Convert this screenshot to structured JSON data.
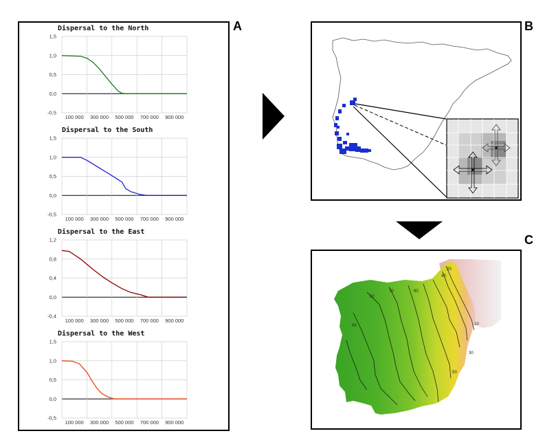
{
  "labels": {
    "a": "A",
    "b": "B",
    "c": "C"
  },
  "chart_data": [
    {
      "type": "line",
      "title": "Dispersal to the North",
      "x_ticks": [
        "100 000",
        "300 000",
        "500 000",
        "700 000",
        "900 000"
      ],
      "y_ticks": [
        "1,5",
        "1,0",
        "0,5",
        "0,0",
        "-0,5"
      ],
      "ylim": [
        -0.5,
        1.5
      ],
      "xlim": [
        0,
        1000000
      ],
      "grid": true,
      "color": "#1e7a1e",
      "series": [
        {
          "x": [
            0,
            150000,
            200000,
            250000,
            300000,
            350000,
            400000,
            450000,
            480000,
            520000,
            600000,
            1000000
          ],
          "y": [
            1.0,
            0.98,
            0.93,
            0.82,
            0.65,
            0.45,
            0.25,
            0.07,
            0.01,
            0.0,
            0.0,
            0.0
          ]
        }
      ]
    },
    {
      "type": "line",
      "title": "Dispersal to the South",
      "x_ticks": [
        "100 000",
        "300 000",
        "500 000",
        "700 000",
        "900 000"
      ],
      "y_ticks": [
        "1,5",
        "1,0",
        "0,5",
        "0,0",
        "-0,5"
      ],
      "ylim": [
        -0.5,
        1.5
      ],
      "xlim": [
        0,
        1000000
      ],
      "grid": true,
      "color": "#2020d0",
      "series": [
        {
          "x": [
            0,
            150000,
            200000,
            300000,
            400000,
            480000,
            510000,
            550000,
            620000,
            680000,
            1000000
          ],
          "y": [
            1.0,
            1.0,
            0.92,
            0.72,
            0.52,
            0.35,
            0.18,
            0.1,
            0.03,
            0.0,
            0.0
          ]
        }
      ]
    },
    {
      "type": "line",
      "title": "Dispersal to the East",
      "x_ticks": [
        "100 000",
        "300 000",
        "500 000",
        "700 000",
        "900 000"
      ],
      "y_ticks": [
        "1,2",
        "0,8",
        "0,4",
        "0,0",
        "-0,4"
      ],
      "ylim": [
        -0.4,
        1.2
      ],
      "xlim": [
        0,
        1000000
      ],
      "grid": true,
      "color": "#8b0000",
      "series": [
        {
          "x": [
            0,
            60000,
            150000,
            250000,
            330000,
            400000,
            480000,
            550000,
            630000,
            690000,
            1000000
          ],
          "y": [
            0.98,
            0.96,
            0.8,
            0.58,
            0.42,
            0.3,
            0.18,
            0.1,
            0.05,
            0.0,
            0.0
          ]
        }
      ]
    },
    {
      "type": "line",
      "title": "Dispersal to the West",
      "x_ticks": [
        "100 000",
        "300 000",
        "500 000",
        "700 000",
        "900 000"
      ],
      "y_ticks": [
        "1,5",
        "1,0",
        "0,5",
        "0,0",
        "-0,5"
      ],
      "ylim": [
        -0.5,
        1.5
      ],
      "xlim": [
        0,
        1000000
      ],
      "grid": true,
      "color": "#ee4411",
      "series": [
        {
          "x": [
            0,
            80000,
            140000,
            200000,
            240000,
            280000,
            320000,
            370000,
            420000,
            1000000
          ],
          "y": [
            1.0,
            0.99,
            0.92,
            0.7,
            0.48,
            0.28,
            0.14,
            0.05,
            0.0,
            0.0
          ]
        }
      ]
    }
  ],
  "contour_labels": [
    "10",
    "20",
    "30",
    "40",
    "50",
    "60",
    "70",
    "80",
    "90"
  ]
}
